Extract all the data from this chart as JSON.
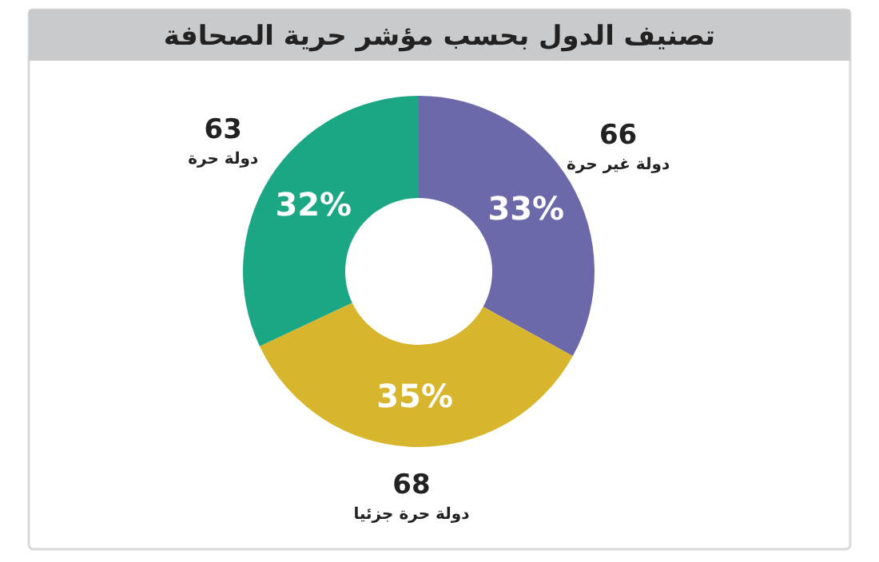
{
  "chart_data": {
    "type": "donut",
    "title": "تصنيف الدول بحسب مؤشر حرية الصحافة",
    "categories": [
      "دولة غير حرة",
      "دولة حرة جزئيا",
      "دولة حرة"
    ],
    "values": [
      33,
      35,
      32
    ],
    "value_labels": [
      "33%",
      "35%",
      "32%"
    ],
    "annotations": [
      "66",
      "68",
      "63"
    ],
    "colors": [
      "#6b69a9",
      "#d7b52c",
      "#1ba784"
    ]
  }
}
